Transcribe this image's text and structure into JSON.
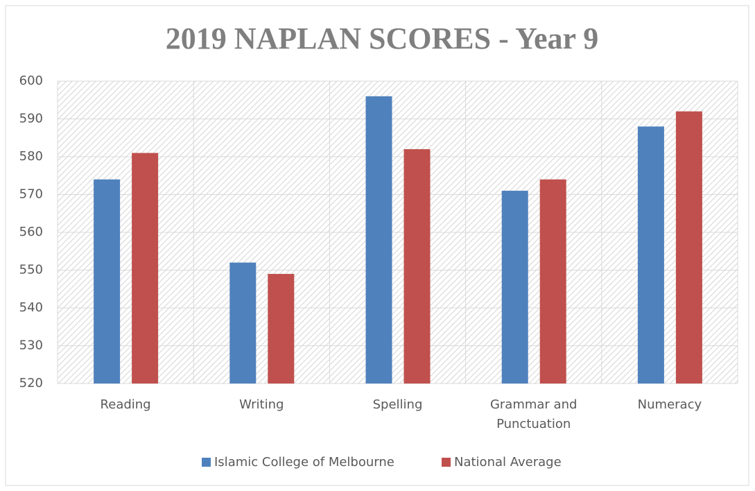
{
  "chart_data": {
    "type": "bar",
    "title": "2019 NAPLAN SCORES - Year 9",
    "categories": [
      "Reading",
      "Writing",
      "Spelling",
      "Grammar and Punctuation",
      "Numeracy"
    ],
    "series": [
      {
        "name": "Islamic College of Melbourne",
        "color": "#4f81bd",
        "values": [
          574,
          552,
          596,
          571,
          588
        ]
      },
      {
        "name": "National Average",
        "color": "#c0504d",
        "values": [
          581,
          549,
          582,
          574,
          592
        ]
      }
    ],
    "ylim": [
      520,
      600
    ],
    "yticks": [
      520,
      530,
      540,
      550,
      560,
      570,
      580,
      590,
      600
    ],
    "grid": true,
    "legend": "bottom"
  }
}
